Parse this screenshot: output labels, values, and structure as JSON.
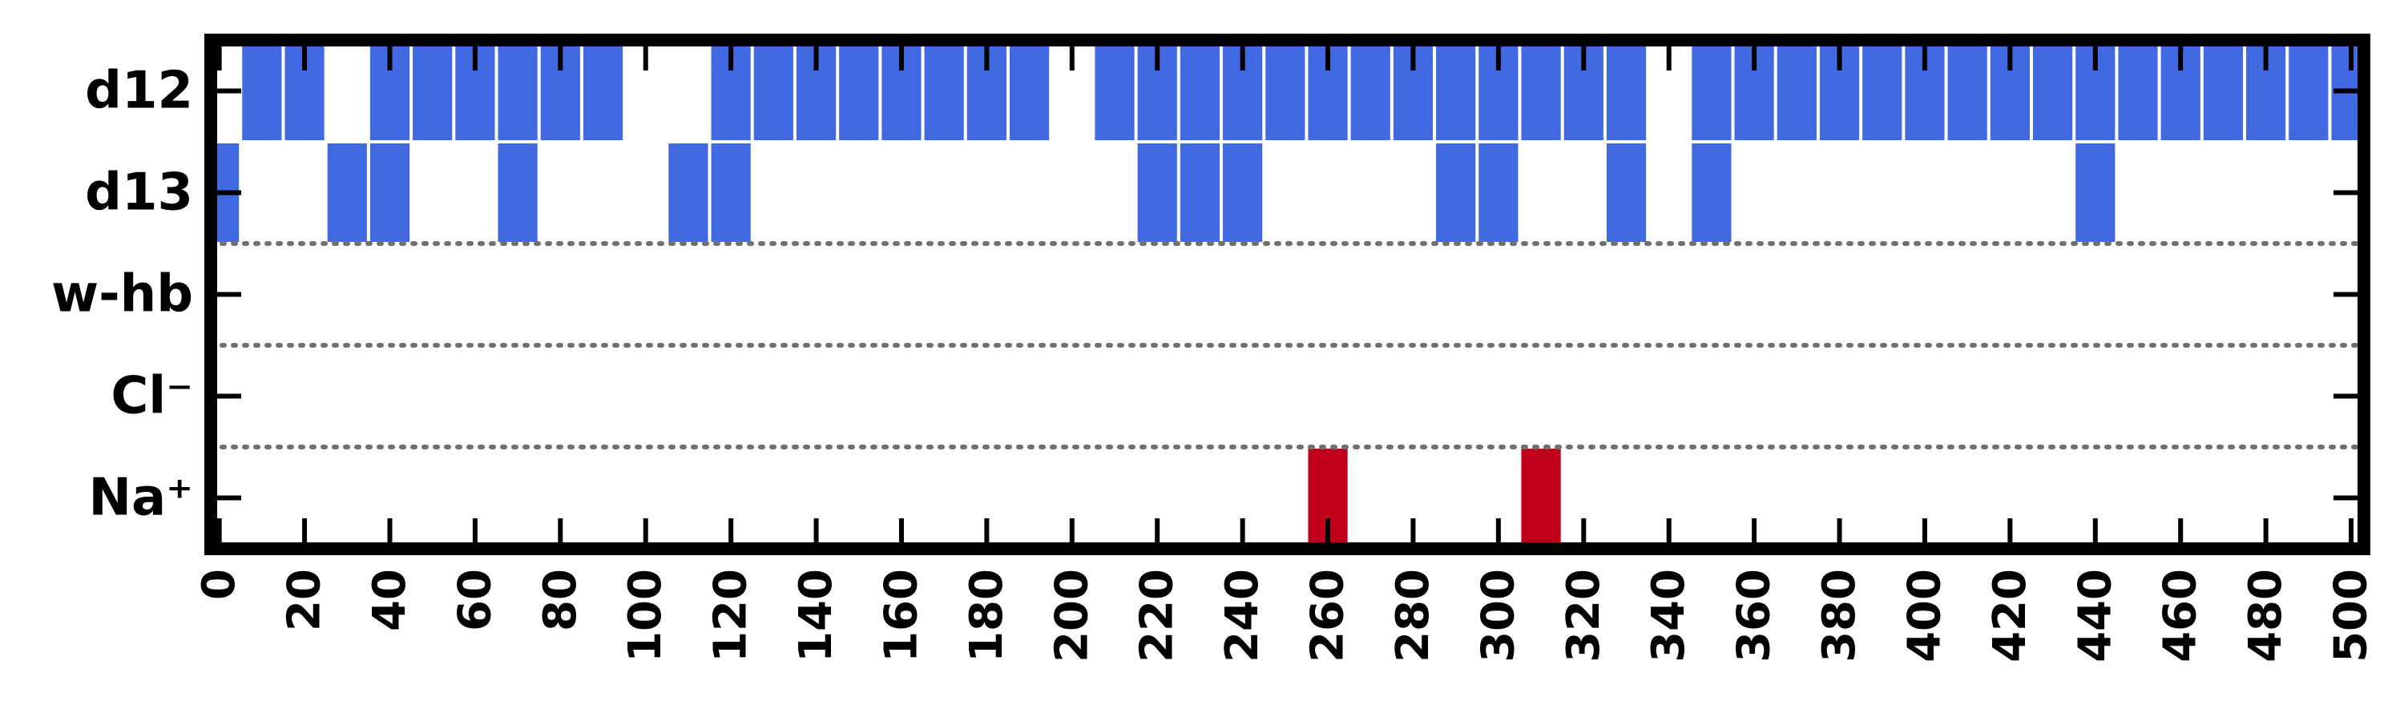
{
  "chart_data": {
    "type": "event-raster",
    "title": "",
    "xlabel": "",
    "ylabel": "",
    "xlim": [
      -2,
      503
    ],
    "bin_width": 10,
    "grid": false,
    "legend": "none",
    "x_ticks": [
      0,
      20,
      40,
      60,
      80,
      100,
      120,
      140,
      160,
      180,
      200,
      220,
      240,
      260,
      280,
      300,
      320,
      340,
      360,
      380,
      400,
      420,
      440,
      460,
      480,
      500
    ],
    "x_tick_labels": [
      "0",
      "20",
      "40",
      "60",
      "80",
      "100",
      "120",
      "140",
      "160",
      "180",
      "200",
      "220",
      "240",
      "260",
      "280",
      "300",
      "320",
      "340",
      "360",
      "380",
      "400",
      "420",
      "440",
      "460",
      "480",
      "500"
    ],
    "rows": [
      {
        "label": "d12",
        "color": "#4169e1",
        "events": [
          10,
          20,
          40,
          50,
          60,
          70,
          80,
          90,
          120,
          130,
          140,
          150,
          160,
          170,
          180,
          190,
          210,
          220,
          230,
          240,
          250,
          260,
          270,
          280,
          290,
          300,
          310,
          320,
          330,
          350,
          360,
          370,
          380,
          390,
          400,
          410,
          420,
          430,
          440,
          450,
          460,
          470,
          480,
          490,
          500
        ]
      },
      {
        "label": "d13",
        "color": "#4169e1",
        "events": [
          0,
          30,
          40,
          70,
          110,
          120,
          220,
          230,
          240,
          290,
          300,
          330,
          350,
          440
        ]
      },
      {
        "label": "w-hb",
        "color": "#4169e1",
        "events": []
      },
      {
        "label": "Cl⁻",
        "color": "#c0001a",
        "events": []
      },
      {
        "label": "Na⁺",
        "color": "#c0001a",
        "events": [
          260,
          310
        ]
      }
    ]
  }
}
